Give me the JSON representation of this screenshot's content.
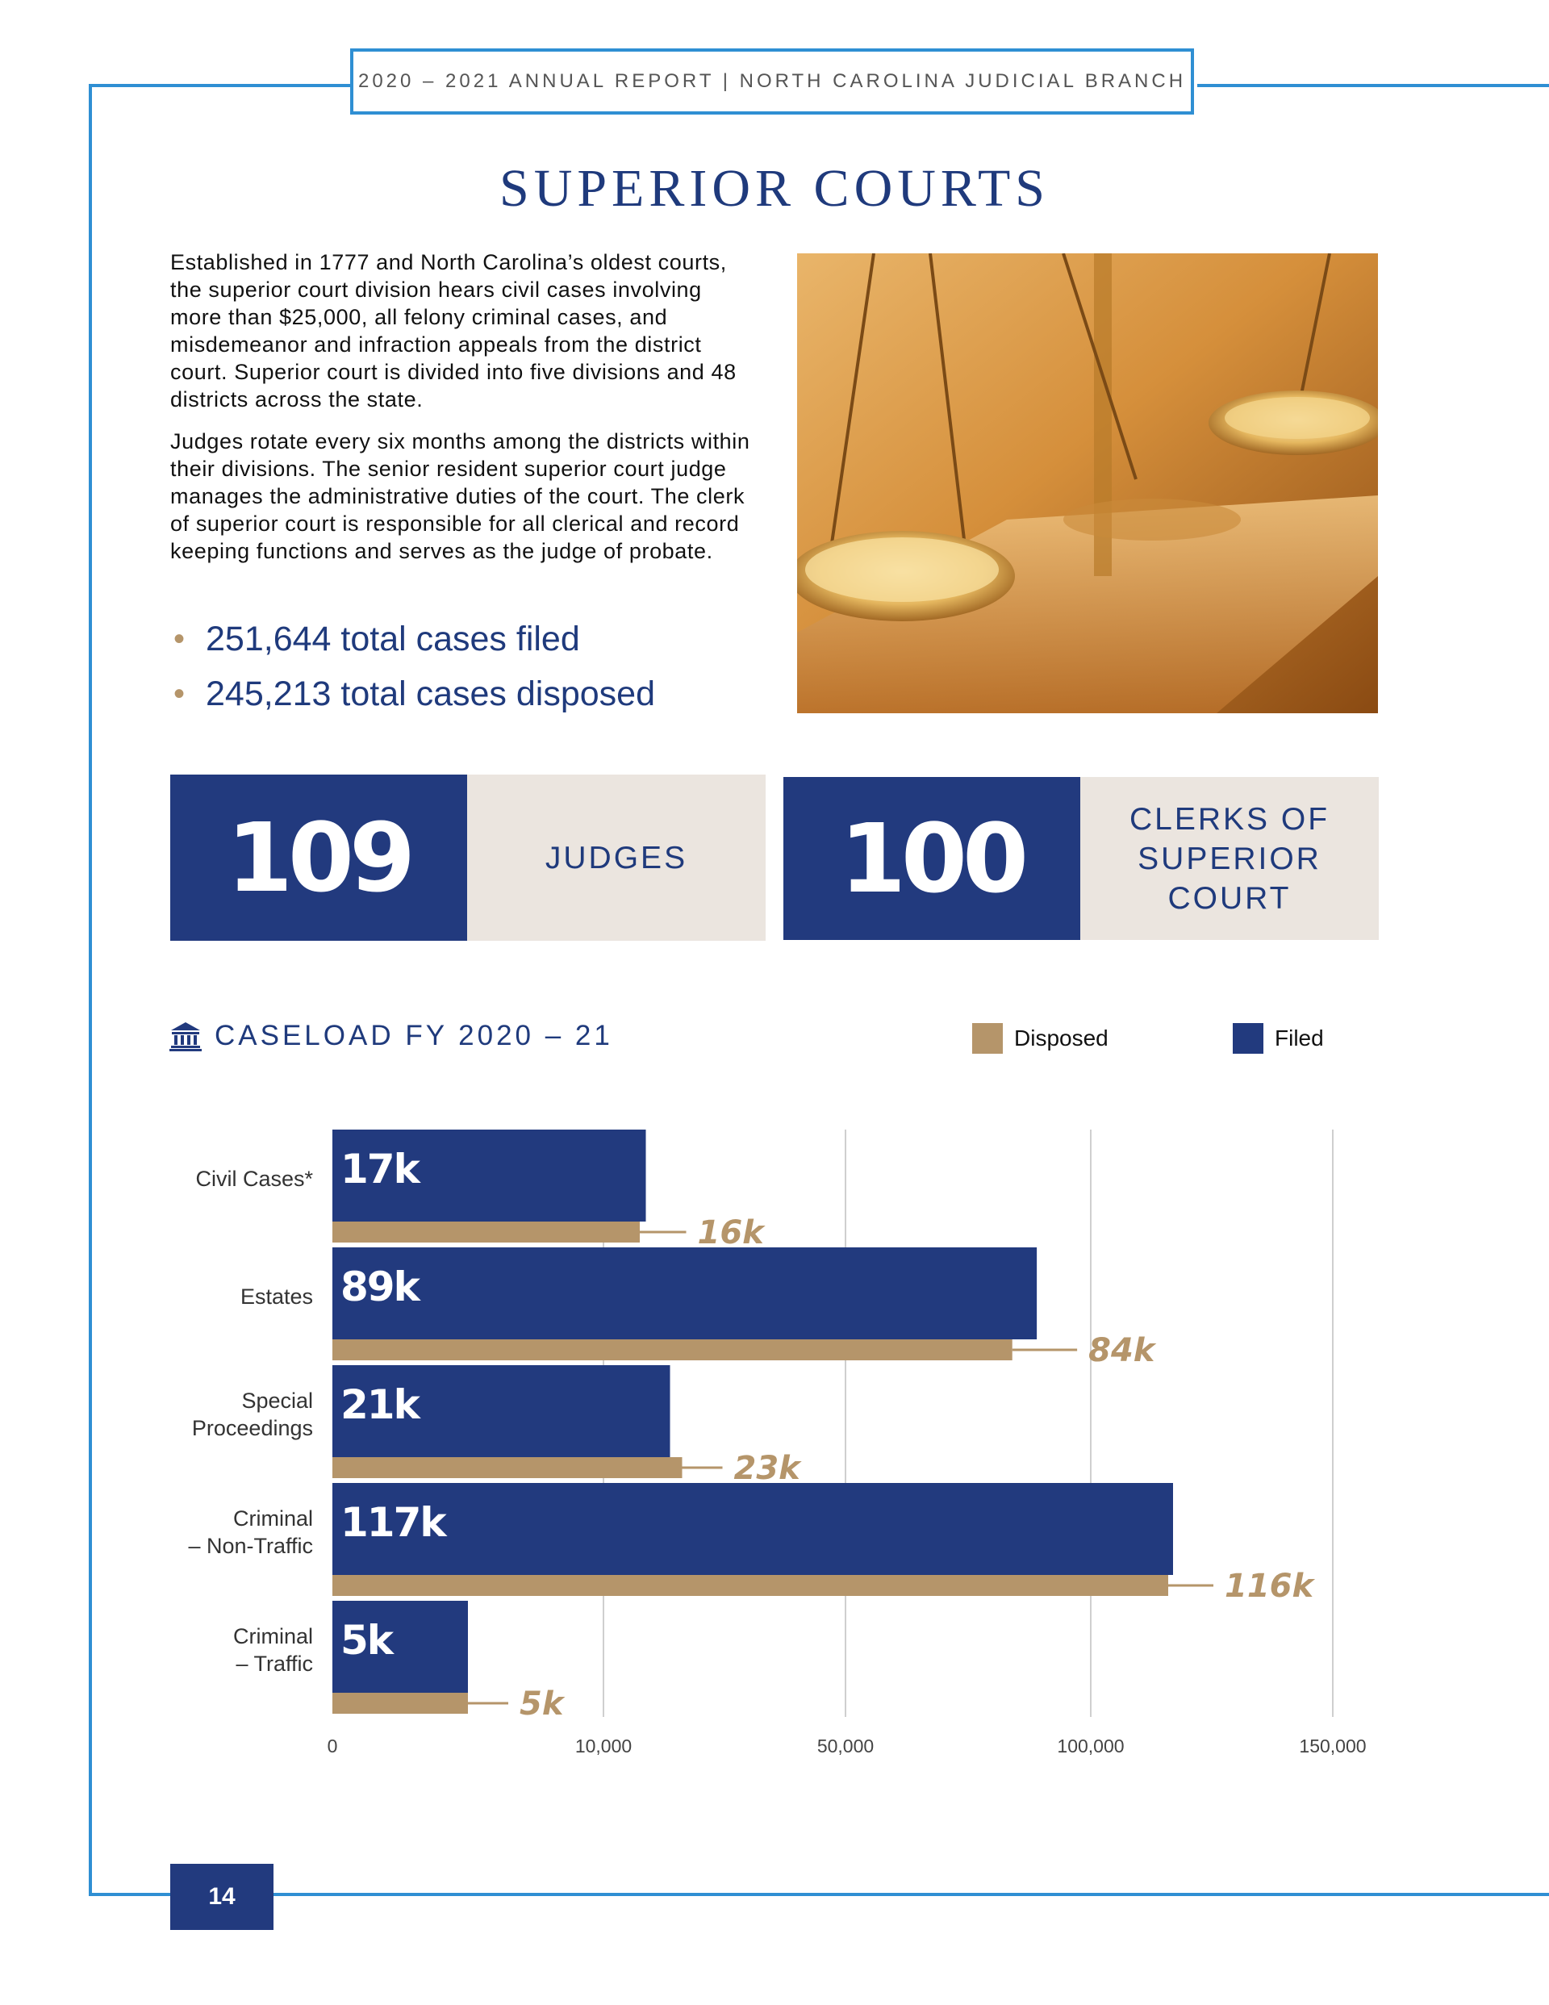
{
  "header": {
    "text": "2020 – 2021 ANNUAL REPORT | NORTH CAROLINA JUDICIAL BRANCH"
  },
  "page_title": "SUPERIOR COURTS",
  "intro": {
    "paragraph1": "Established in 1777 and North Carolina’s oldest courts, the superior court division hears civil cases involving more than $25,000, all felony criminal cases, and misdemeanor and infraction appeals from the district court. Superior court is divided into five divisions and 48 districts across the state.",
    "paragraph2": "Judges rotate every six months among the districts within their divisions. The senior resident superior court judge manages the administrative duties of the court. The clerk of superior court is responsible for all clerical and record keeping functions and serves as the judge of probate."
  },
  "stats": [
    {
      "text": "251,644 total cases filed"
    },
    {
      "text": "245,213 total cases disposed"
    }
  ],
  "stat_boxes": [
    {
      "number": "109",
      "label": "JUDGES"
    },
    {
      "number": "100",
      "label": "CLERKS OF\nSUPERIOR\nCOURT"
    }
  ],
  "section_title": "CASELOAD FY 2020 – 21",
  "icon": "courthouse-icon",
  "colors": {
    "accent": "#2f8fd3",
    "navy": "#223a7e",
    "tan": "#b5956a",
    "cream": "#ebe5df"
  },
  "chart_data": {
    "type": "bar",
    "orientation": "horizontal",
    "categories": [
      "Civil Cases*",
      "Estates",
      "Special\nProceedings",
      "Criminal\n– Non-Traffic",
      "Criminal\n– Traffic"
    ],
    "series": [
      {
        "name": "Filed",
        "color": "#223a7e",
        "values": [
          17000,
          89000,
          21000,
          117000,
          5000
        ],
        "labels": [
          "17k",
          "89k",
          "21k",
          "117k",
          "5k"
        ]
      },
      {
        "name": "Disposed",
        "color": "#b5956a",
        "values": [
          16000,
          84000,
          23000,
          116000,
          5000
        ],
        "labels": [
          "16k",
          "84k",
          "23k",
          "116k",
          "5k"
        ]
      }
    ],
    "x_ticks": [
      {
        "value": 0,
        "label": "0"
      },
      {
        "value": 10000,
        "label": "10,000"
      },
      {
        "value": 50000,
        "label": "50,000"
      },
      {
        "value": 100000,
        "label": "100,000"
      },
      {
        "value": 150000,
        "label": "150,000"
      }
    ],
    "legend": [
      "Disposed",
      "Filed"
    ],
    "legend_position": "top-right",
    "grid": true
  },
  "page_number": "14"
}
